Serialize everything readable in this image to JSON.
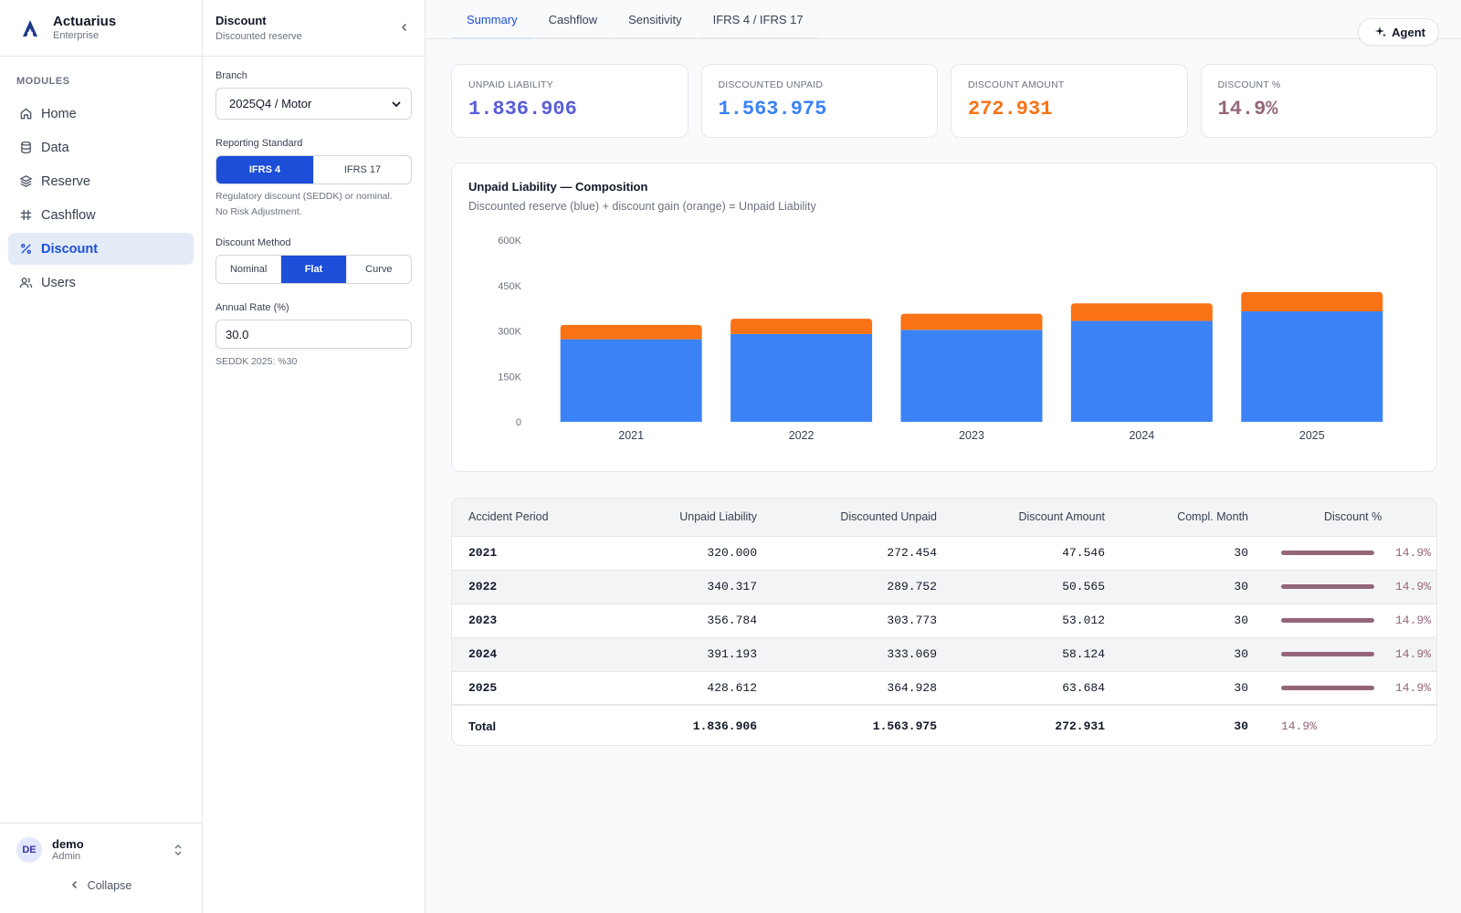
{
  "brand": {
    "name": "Actuarius",
    "subtitle": "Enterprise"
  },
  "sidebar": {
    "section_label": "MODULES",
    "items": [
      {
        "label": "Home",
        "icon": "home-icon"
      },
      {
        "label": "Data",
        "icon": "database-icon"
      },
      {
        "label": "Reserve",
        "icon": "layers-icon"
      },
      {
        "label": "Cashflow",
        "icon": "grid-icon"
      },
      {
        "label": "Discount",
        "icon": "percent-icon",
        "active": true
      },
      {
        "label": "Users",
        "icon": "users-icon"
      }
    ],
    "user": {
      "initials": "DE",
      "name": "demo",
      "role": "Admin"
    },
    "collapse_label": "Collapse"
  },
  "panel": {
    "title": "Discount",
    "subtitle": "Discounted reserve",
    "branch_label": "Branch",
    "branch_value": "2025Q4 / Motor",
    "standard_label": "Reporting Standard",
    "standard_options": [
      "IFRS 4",
      "IFRS 17"
    ],
    "standard_selected": "IFRS 4",
    "standard_help_1": "Regulatory discount (SEDDK) or nominal.",
    "standard_help_2": "No Risk Adjustment.",
    "method_label": "Discount Method",
    "method_options": [
      "Nominal",
      "Flat",
      "Curve"
    ],
    "method_selected": "Flat",
    "rate_label": "Annual Rate (%)",
    "rate_value": "30.0",
    "rate_help": "SEDDK 2025: %30"
  },
  "tabs": [
    {
      "label": "Summary",
      "active": true
    },
    {
      "label": "Cashflow"
    },
    {
      "label": "Sensitivity"
    },
    {
      "label": "IFRS 4 / IFRS 17"
    }
  ],
  "agent_label": "Agent",
  "kpis": [
    {
      "label": "UNPAID LIABILITY",
      "value": "1.836.906",
      "color": "#5b5fd6"
    },
    {
      "label": "DISCOUNTED UNPAID",
      "value": "1.563.975",
      "color": "#3b82f6"
    },
    {
      "label": "DISCOUNT AMOUNT",
      "value": "272.931",
      "color": "#f97316"
    },
    {
      "label": "DISCOUNT %",
      "value": "14.9%",
      "color": "#94667a"
    }
  ],
  "chart_data": {
    "type": "bar",
    "title": "Unpaid Liability — Composition",
    "subtitle": "Discounted reserve (blue) + discount gain (orange) = Unpaid Liability",
    "categories": [
      "2021",
      "2022",
      "2023",
      "2024",
      "2025"
    ],
    "stacked": true,
    "series": [
      {
        "values": [
          272454,
          289752,
          303773,
          333069,
          364928
        ],
        "color": "#3b82f6"
      },
      {
        "values": [
          47546,
          50565,
          53012,
          58124,
          63684
        ],
        "color": "#f97316"
      }
    ],
    "yticks": [
      "600K",
      "450K",
      "300K",
      "150K",
      "0"
    ],
    "ylim": [
      0,
      600000
    ],
    "grid": false
  },
  "table": {
    "headers": [
      "Accident Period",
      "Unpaid Liability",
      "Discounted Unpaid",
      "Discount Amount",
      "Compl. Month",
      "Discount %"
    ],
    "rows": [
      {
        "period": "2021",
        "unpaid": "320.000",
        "discounted": "272.454",
        "amount": "47.546",
        "month": "30",
        "pct": "14.9%",
        "pct_value": 14.9
      },
      {
        "period": "2022",
        "unpaid": "340.317",
        "discounted": "289.752",
        "amount": "50.565",
        "month": "30",
        "pct": "14.9%",
        "pct_value": 14.9
      },
      {
        "period": "2023",
        "unpaid": "356.784",
        "discounted": "303.773",
        "amount": "53.012",
        "month": "30",
        "pct": "14.9%",
        "pct_value": 14.9
      },
      {
        "period": "2024",
        "unpaid": "391.193",
        "discounted": "333.069",
        "amount": "58.124",
        "month": "30",
        "pct": "14.9%",
        "pct_value": 14.9
      },
      {
        "period": "2025",
        "unpaid": "428.612",
        "discounted": "364.928",
        "amount": "63.684",
        "month": "30",
        "pct": "14.9%",
        "pct_value": 14.9
      }
    ],
    "total": {
      "label": "Total",
      "unpaid": "1.836.906",
      "discounted": "1.563.975",
      "amount": "272.931",
      "month": "30",
      "pct": "14.9%"
    }
  }
}
